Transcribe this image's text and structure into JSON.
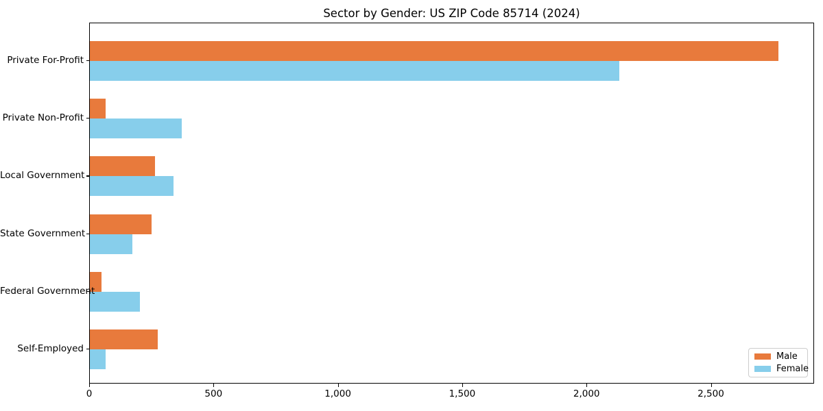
{
  "title": "Sector by Gender: US ZIP Code 85714 (2024)",
  "chart_data": {
    "type": "bar",
    "orientation": "horizontal",
    "title": "Sector by Gender: US ZIP Code 85714 (2024)",
    "categories": [
      "Private For-Profit",
      "Private Non-Profit",
      "Local Government",
      "State Government",
      "Federal Government",
      "Self-Employed"
    ],
    "series": [
      {
        "name": "Male",
        "color": "#E87A3C",
        "values": [
          2770,
          64,
          262,
          248,
          48,
          272
        ]
      },
      {
        "name": "Female",
        "color": "#87CEEB",
        "values": [
          2128,
          370,
          336,
          170,
          201,
          64
        ]
      }
    ],
    "xlabel": "",
    "ylabel": "",
    "xlim": [
      0,
      2915
    ],
    "x_ticks": [
      0,
      500,
      1000,
      1500,
      2000,
      2500
    ],
    "x_tick_labels": [
      "0",
      "500",
      "1,000",
      "1,500",
      "2,000",
      "2,500"
    ],
    "grid": false,
    "legend_position": "lower right",
    "axis_color": "#000000",
    "background_color": "#ffffff"
  }
}
